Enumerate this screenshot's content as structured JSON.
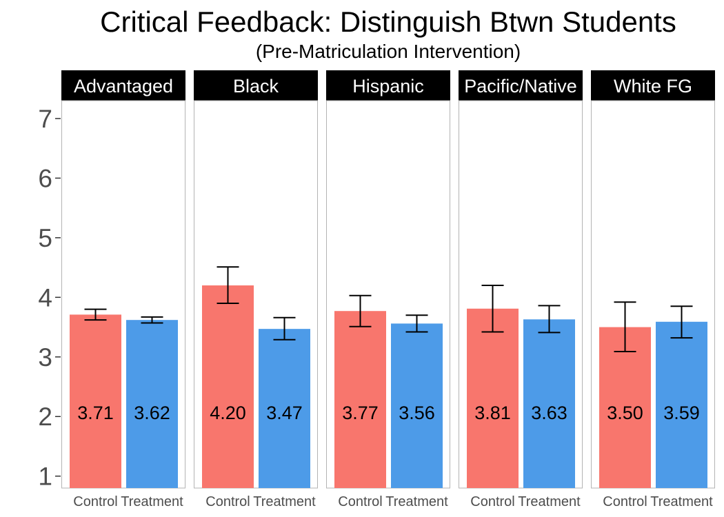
{
  "chart_data": {
    "type": "bar",
    "title": "Critical Feedback: Distinguish Btwn Students",
    "subtitle": "(Pre-Matriculation Intervention)",
    "xlabel": "",
    "ylabel": "",
    "ylim": [
      0.8,
      7.3
    ],
    "yticks": [
      "1",
      "2",
      "3",
      "4",
      "5",
      "6",
      "7"
    ],
    "categories": [
      "Control",
      "Treatment"
    ],
    "colors": {
      "Control": "#f8766d",
      "Treatment": "#4d9be8",
      "strip": "#000000",
      "panel_border": "#b3b3b3",
      "error_bar": "#000000"
    },
    "facets": [
      {
        "name": "Advantaged",
        "values": [
          3.71,
          3.62
        ],
        "labels": [
          "3.71",
          "3.62"
        ],
        "err_low": [
          3.62,
          3.57
        ],
        "err_high": [
          3.8,
          3.67
        ]
      },
      {
        "name": "Black",
        "values": [
          4.2,
          3.47
        ],
        "labels": [
          "4.20",
          "3.47"
        ],
        "err_low": [
          3.9,
          3.29
        ],
        "err_high": [
          4.51,
          3.66
        ]
      },
      {
        "name": "Hispanic",
        "values": [
          3.77,
          3.56
        ],
        "labels": [
          "3.77",
          "3.56"
        ],
        "err_low": [
          3.51,
          3.42
        ],
        "err_high": [
          4.03,
          3.7
        ]
      },
      {
        "name": "Pacific/Native",
        "values": [
          3.81,
          3.63
        ],
        "labels": [
          "3.81",
          "3.63"
        ],
        "err_low": [
          3.42,
          3.41
        ],
        "err_high": [
          4.2,
          3.86
        ]
      },
      {
        "name": "White FG",
        "values": [
          3.5,
          3.59
        ],
        "labels": [
          "3.50",
          "3.59"
        ],
        "err_low": [
          3.09,
          3.32
        ],
        "err_high": [
          3.92,
          3.85
        ]
      }
    ]
  }
}
